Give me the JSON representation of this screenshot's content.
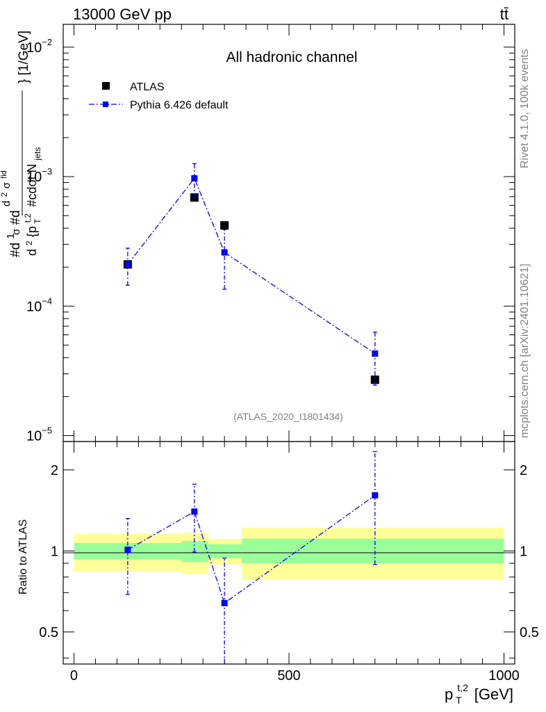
{
  "header": {
    "left": "13000 GeV pp",
    "right": "tt̄"
  },
  "side": {
    "rivet": "Rivet 4.1.0,  100k events",
    "source": "mcplots.cern.ch [arXiv:2401.10621]"
  },
  "colors": {
    "atlas": "#000000",
    "pythia": "#0000ff",
    "band_inner": "#99ff99",
    "band_outer": "#ffff99"
  },
  "chart_data": [
    {
      "type": "scatter",
      "title": "All hadronic channel",
      "watermark": "(ATLAS_2020_I1801434)",
      "ylabel": "#d¹⁄σ#d d²σᶠⁱᵈ / d² {p_T^{t,2} #cdot N_jets} [1/GeV]",
      "ylabel_parts": {
        "main": "#d",
        "frac": "1",
        "sigma": "σ",
        "d2": "d",
        "sigmafid": "σ",
        "fid": "fid",
        "denom_pre": "d",
        "denom_mid": " {p",
        "denom_sup": "t,2",
        "denom_sub": "T",
        "denom_post": " #cdot N",
        "jets": "jets",
        "unit": "} [1/GeV]"
      },
      "yscale": "log",
      "ylim": [
        9e-06,
        0.015
      ],
      "yticks": [
        {
          "value": 1e-05,
          "base": "10",
          "exp": "−5"
        },
        {
          "value": 0.0001,
          "base": "10",
          "exp": "−4"
        },
        {
          "value": 0.001,
          "base": "10",
          "exp": "−3"
        },
        {
          "value": 0.01,
          "base": "10",
          "exp": "−2"
        }
      ],
      "xlim": [
        -25,
        1025
      ],
      "legend": {
        "placement": "top-left",
        "entries": [
          "ATLAS",
          "Pythia 6.426 default"
        ]
      },
      "series": [
        {
          "name": "ATLAS",
          "marker": "square",
          "x": [
            125,
            280,
            350,
            700
          ],
          "y": [
            0.00021,
            0.00069,
            0.00042,
            2.7e-05
          ],
          "yerr_low": [
            0,
            0,
            0,
            0
          ],
          "yerr_high": [
            0,
            0,
            0,
            0
          ]
        },
        {
          "name": "Pythia 6.426 default",
          "marker": "square-line",
          "x": [
            125,
            280,
            350,
            700
          ],
          "y": [
            0.00021,
            0.00097,
            0.00026,
            4.3e-05
          ],
          "yerr_low": [
            0.000145,
            0.00069,
            0.000135,
            2.45e-05
          ],
          "yerr_high": [
            0.00028,
            0.00126,
            0.00039,
            6.3e-05
          ]
        }
      ]
    },
    {
      "type": "scatter",
      "ylabel": "Ratio to ATLAS",
      "yscale": "log",
      "ylim": [
        0.38,
        2.55
      ],
      "yticks": [
        {
          "value": 0.5,
          "label": "0.5"
        },
        {
          "value": 1,
          "label": "1"
        },
        {
          "value": 2,
          "label": "2"
        }
      ],
      "xlim": [
        -25,
        1025
      ],
      "xticks": [
        {
          "value": 0,
          "label": "0"
        },
        {
          "value": 500,
          "label": "500"
        },
        {
          "value": 1000,
          "label": "1000"
        }
      ],
      "xlabel_parts": {
        "p": "p",
        "sup": "t,2",
        "sub": "T",
        "unit": " [GeV]"
      },
      "bands": [
        {
          "x0": 0,
          "x1": 250,
          "inner": [
            0.93,
            1.07
          ],
          "outer": [
            0.84,
            1.16
          ]
        },
        {
          "x0": 250,
          "x1": 312,
          "inner": [
            0.91,
            1.09
          ],
          "outer": [
            0.82,
            1.17
          ]
        },
        {
          "x0": 312,
          "x1": 390,
          "inner": [
            0.94,
            1.06
          ],
          "outer": [
            0.89,
            1.11
          ]
        },
        {
          "x0": 390,
          "x1": 1000,
          "inner": [
            0.9,
            1.11
          ],
          "outer": [
            0.78,
            1.22
          ]
        }
      ],
      "series": [
        {
          "name": "Pythia 6.426 default",
          "x": [
            125,
            280,
            350,
            700
          ],
          "y": [
            1.01,
            1.4,
            0.64,
            1.61
          ],
          "yerr_low": [
            0.69,
            0.99,
            0.31,
            0.89
          ],
          "yerr_high": [
            1.32,
            1.77,
            0.94,
            2.34
          ]
        }
      ]
    }
  ]
}
